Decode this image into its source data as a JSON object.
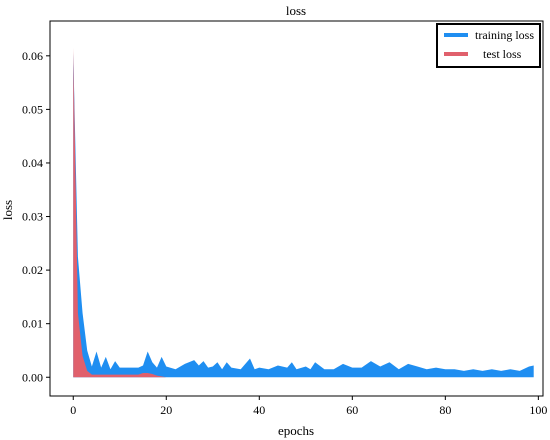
{
  "chart_data": {
    "type": "area",
    "title": "loss",
    "xlabel": "epochs",
    "ylabel": "loss",
    "xlim": [
      -5,
      101
    ],
    "ylim": [
      -0.0035,
      0.0665
    ],
    "xticks": [
      0,
      20,
      40,
      60,
      80,
      100
    ],
    "yticks": [
      0.0,
      0.01,
      0.02,
      0.03,
      0.04,
      0.05,
      0.06
    ],
    "ytick_labels": [
      "0.00",
      "0.01",
      "0.02",
      "0.03",
      "0.04",
      "0.05",
      "0.06"
    ],
    "grid": false,
    "legend_position": "top-right",
    "series": [
      {
        "name": "training loss",
        "color": "#1f8ef1",
        "x": [
          0,
          1,
          2,
          3,
          4,
          5,
          6,
          7,
          8,
          9,
          10,
          12,
          14,
          15,
          16,
          17,
          18,
          19,
          20,
          22,
          24,
          26,
          27,
          28,
          29,
          30,
          31,
          32,
          33,
          34,
          36,
          38,
          39,
          40,
          42,
          44,
          46,
          47,
          48,
          50,
          51,
          52,
          54,
          56,
          58,
          60,
          62,
          64,
          66,
          68,
          70,
          72,
          74,
          76,
          78,
          80,
          82,
          84,
          86,
          88,
          90,
          92,
          94,
          96,
          98,
          99
        ],
        "values": [
          0.0605,
          0.0225,
          0.012,
          0.005,
          0.002,
          0.0048,
          0.0018,
          0.0038,
          0.0015,
          0.003,
          0.0018,
          0.0018,
          0.0018,
          0.0022,
          0.0048,
          0.0028,
          0.0018,
          0.0038,
          0.002,
          0.0015,
          0.0025,
          0.0032,
          0.0022,
          0.003,
          0.0018,
          0.002,
          0.0028,
          0.0015,
          0.0028,
          0.0018,
          0.0015,
          0.0035,
          0.0015,
          0.0018,
          0.0015,
          0.0022,
          0.0018,
          0.0028,
          0.0015,
          0.002,
          0.0015,
          0.0028,
          0.0015,
          0.0015,
          0.0025,
          0.0018,
          0.0018,
          0.003,
          0.002,
          0.0028,
          0.0015,
          0.0025,
          0.002,
          0.0015,
          0.0018,
          0.0015,
          0.0015,
          0.0012,
          0.0015,
          0.0012,
          0.0015,
          0.0012,
          0.0015,
          0.0012,
          0.002,
          0.0022
        ]
      },
      {
        "name": "test loss",
        "color": "#e0606c",
        "x": [
          0,
          1,
          2,
          3,
          4,
          6,
          8,
          10,
          12,
          14,
          15,
          16,
          17,
          18,
          20,
          40,
          60,
          80,
          99
        ],
        "values": [
          0.0615,
          0.012,
          0.004,
          0.0012,
          0.0005,
          0.0005,
          0.0005,
          0.0005,
          0.0005,
          0.0005,
          0.0008,
          0.0008,
          0.0006,
          0.0003,
          0.0,
          0.0,
          0.0,
          0.0,
          0.0
        ]
      }
    ]
  }
}
